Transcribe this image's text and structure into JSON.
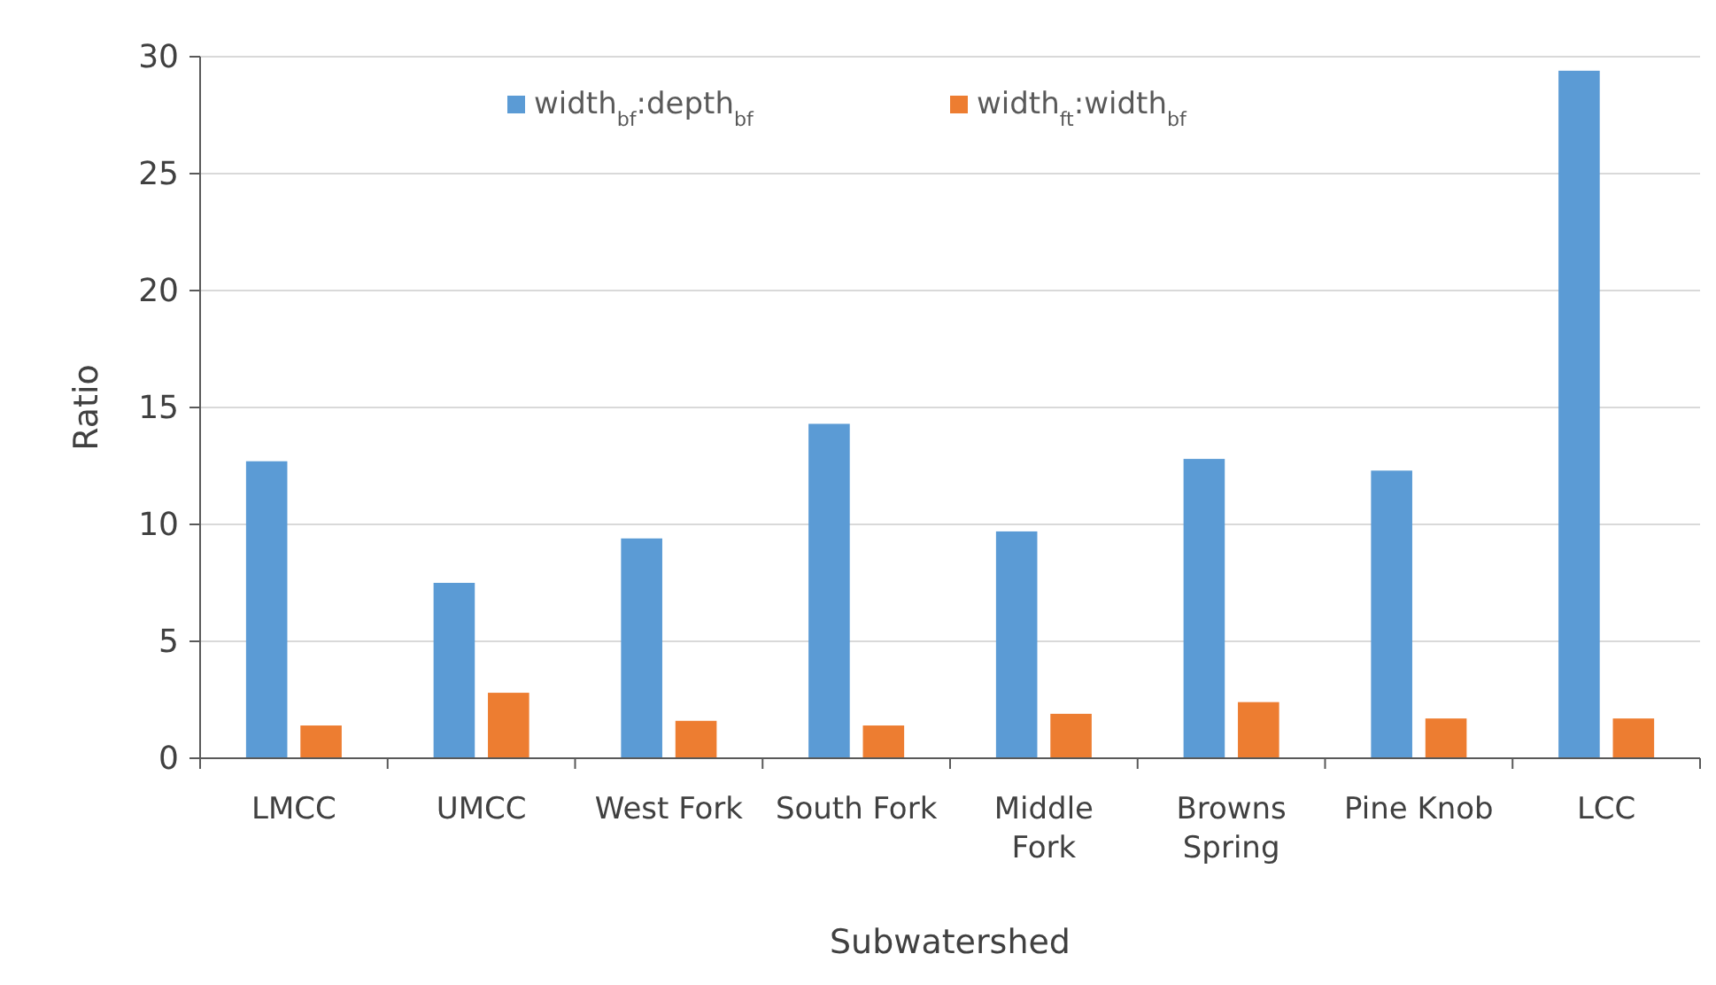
{
  "chart_data": {
    "type": "bar",
    "xlabel": "Subwatershed",
    "ylabel": "Ratio",
    "categories": [
      "LMCC",
      "UMCC",
      "West Fork",
      "South Fork",
      "Middle Fork",
      "Browns Spring",
      "Pine Knob",
      "LCC"
    ],
    "series": [
      {
        "name": "width$_{bf}$:depth$_{bf}$",
        "color": "#5b9bd5",
        "values": [
          12.7,
          7.5,
          9.4,
          14.3,
          9.7,
          12.8,
          12.3,
          29.4
        ]
      },
      {
        "name": "width$_{ft}$:width$_{bf}$",
        "color": "#ed7d31",
        "values": [
          1.4,
          2.8,
          1.6,
          1.4,
          1.9,
          2.4,
          1.7,
          1.7
        ]
      }
    ],
    "ylim": [
      0,
      30
    ],
    "yticks": [
      0,
      5,
      10,
      15,
      20,
      25,
      30
    ],
    "grid": "y",
    "legend": "top"
  }
}
